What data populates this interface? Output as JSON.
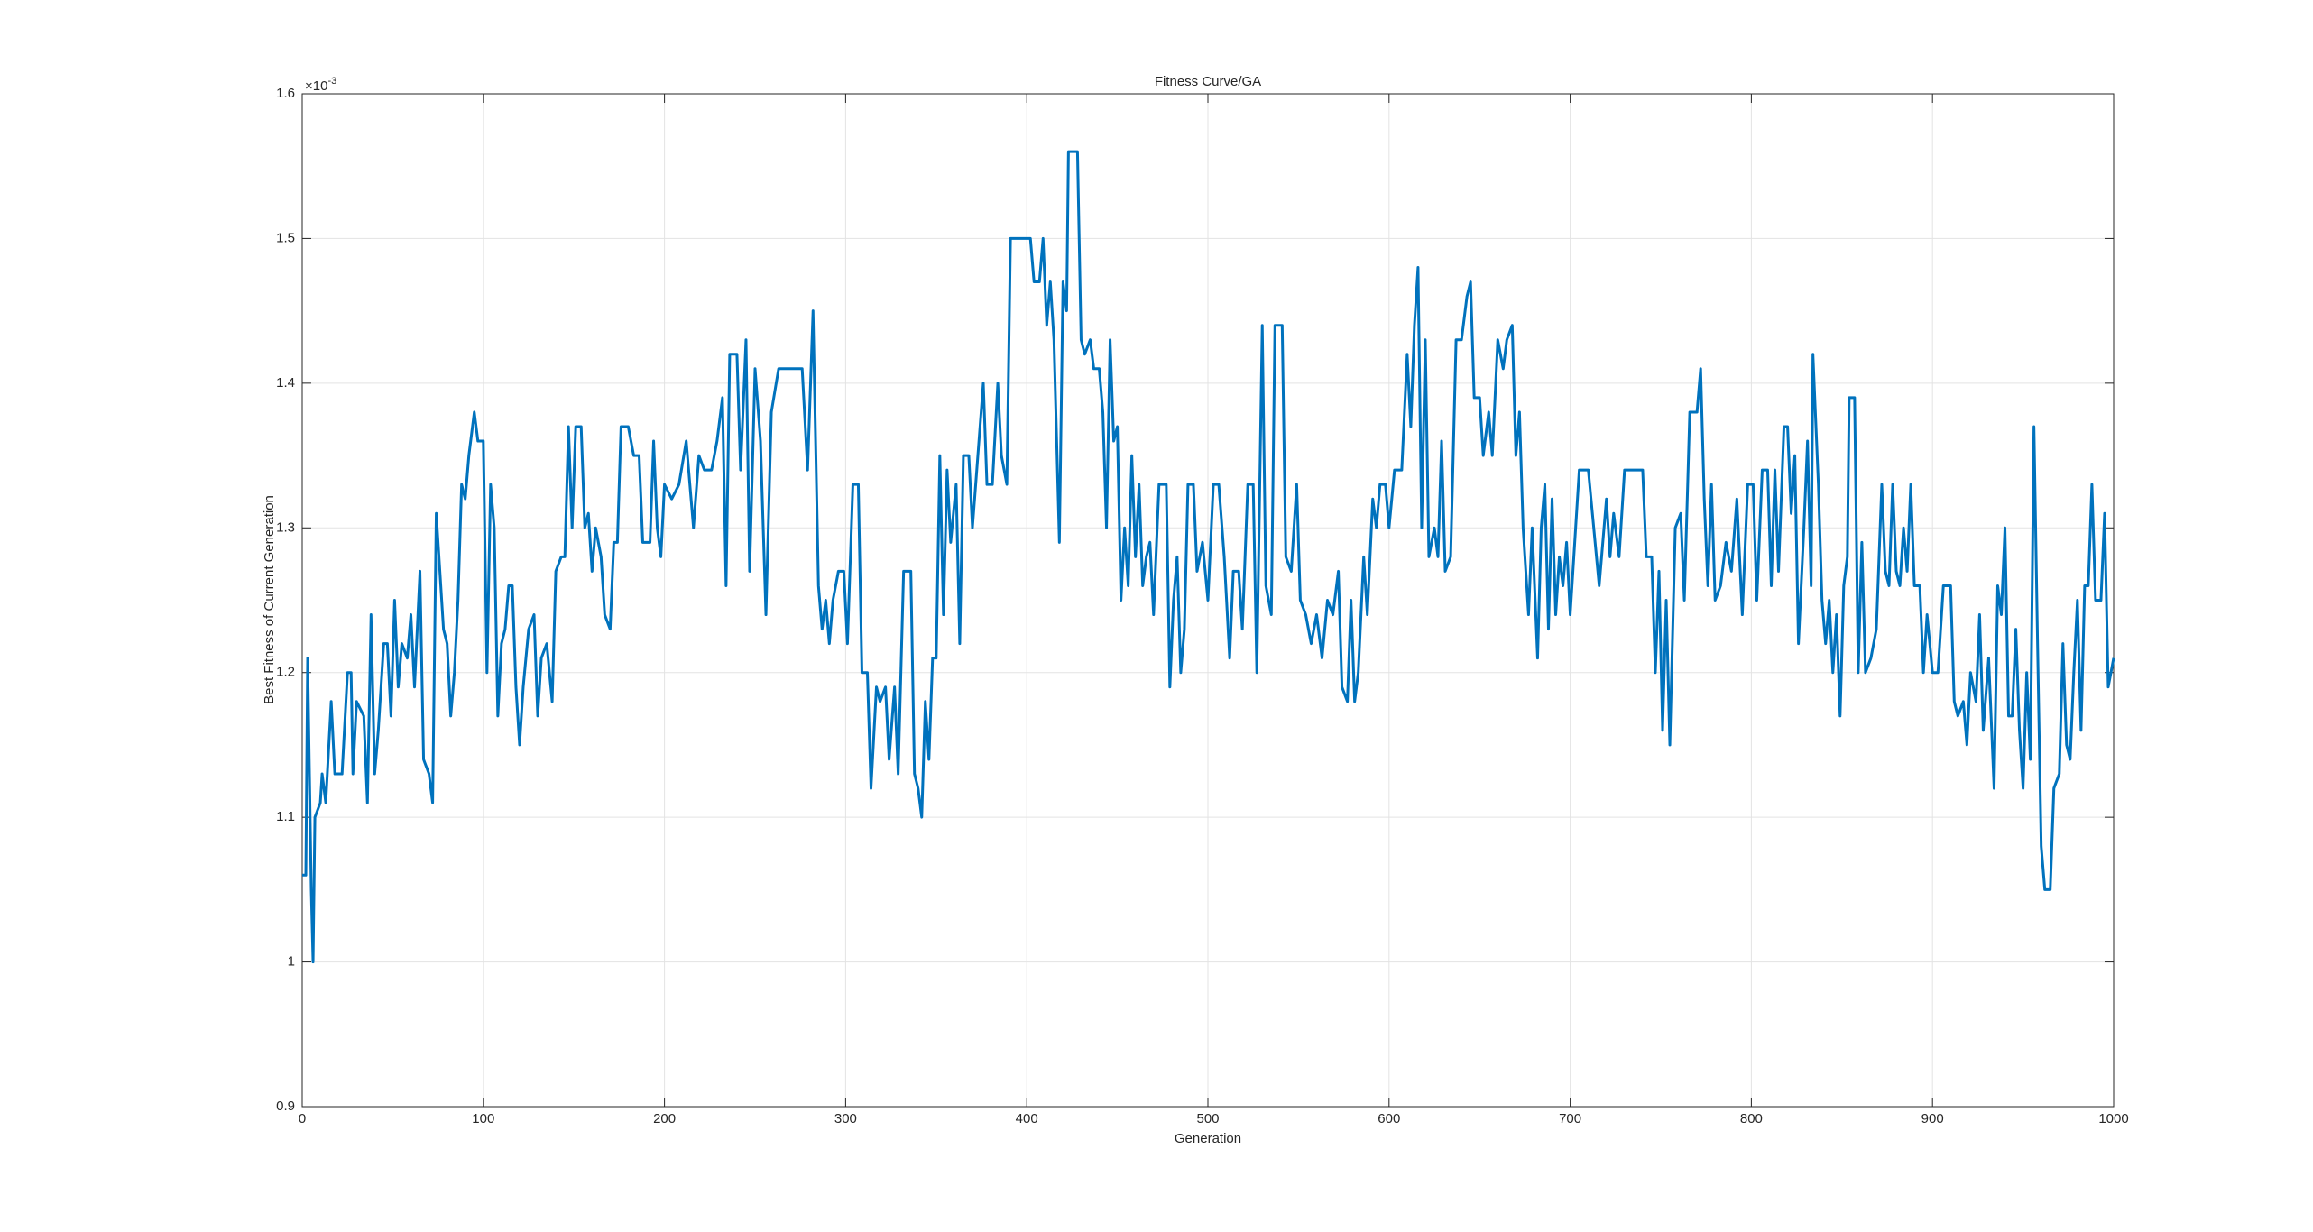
{
  "chart_data": {
    "type": "line",
    "title": "Fitness Curve/GA",
    "xlabel": "Generation",
    "ylabel": "Best Fitness of Current Generation",
    "y_exponent": {
      "base": "×10",
      "power": "-3"
    },
    "color": "#0072bd",
    "grid": true,
    "xlim": [
      0,
      1000
    ],
    "xticks": [
      0,
      100,
      200,
      300,
      400,
      500,
      600,
      700,
      800,
      900,
      1000
    ],
    "ylim": [
      0.9,
      1.6
    ],
    "yticks": [
      0.9,
      1,
      1.1,
      1.2,
      1.3,
      1.4,
      1.5,
      1.6
    ],
    "x": [
      0,
      2,
      3,
      5,
      6,
      7,
      10,
      11,
      13,
      16,
      18,
      22,
      25,
      27,
      28,
      30,
      34,
      36,
      38,
      40,
      42,
      45,
      47,
      49,
      51,
      53,
      55,
      58,
      60,
      62,
      65,
      67,
      70,
      72,
      74,
      76,
      78,
      80,
      82,
      84,
      86,
      88,
      90,
      92,
      95,
      97,
      100,
      102,
      104,
      106,
      108,
      110,
      112,
      114,
      116,
      118,
      120,
      122,
      125,
      128,
      130,
      132,
      135,
      138,
      140,
      143,
      145,
      147,
      149,
      151,
      154,
      156,
      158,
      160,
      162,
      165,
      167,
      170,
      172,
      174,
      176,
      180,
      183,
      186,
      188,
      192,
      194,
      196,
      198,
      200,
      204,
      208,
      212,
      216,
      219,
      222,
      226,
      229,
      232,
      234,
      236,
      240,
      242,
      245,
      247,
      250,
      253,
      256,
      259,
      263,
      270,
      276,
      279,
      282,
      285,
      287,
      289,
      291,
      293,
      296,
      299,
      301,
      304,
      307,
      309,
      312,
      314,
      317,
      319,
      322,
      324,
      327,
      329,
      332,
      336,
      338,
      340,
      342,
      344,
      346,
      348,
      350,
      352,
      354,
      356,
      358,
      361,
      363,
      365,
      368,
      370,
      373,
      376,
      378,
      381,
      384,
      386,
      389,
      391,
      396,
      402,
      404,
      407,
      409,
      411,
      413,
      415,
      418,
      420,
      422,
      423,
      428,
      430,
      432,
      435,
      437,
      440,
      442,
      444,
      446,
      448,
      450,
      452,
      454,
      456,
      458,
      460,
      462,
      464,
      466,
      468,
      470,
      473,
      477,
      479,
      481,
      483,
      485,
      487,
      489,
      492,
      494,
      497,
      500,
      503,
      506,
      509,
      512,
      514,
      517,
      519,
      522,
      525,
      527,
      530,
      532,
      535,
      537,
      541,
      543,
      546,
      549,
      551,
      554,
      557,
      560,
      563,
      566,
      569,
      572,
      574,
      577,
      579,
      581,
      583,
      586,
      588,
      591,
      593,
      595,
      598,
      600,
      603,
      607,
      610,
      612,
      614,
      616,
      618,
      620,
      622,
      625,
      627,
      629,
      631,
      634,
      637,
      640,
      643,
      645,
      647,
      650,
      652,
      655,
      657,
      660,
      663,
      665,
      668,
      670,
      672,
      674,
      677,
      679,
      682,
      684,
      686,
      688,
      690,
      692,
      694,
      696,
      698,
      700,
      705,
      710,
      716,
      720,
      722,
      724,
      727,
      730,
      740,
      742,
      745,
      747,
      749,
      751,
      753,
      755,
      758,
      761,
      763,
      766,
      770,
      772,
      774,
      776,
      778,
      780,
      783,
      786,
      789,
      792,
      795,
      798,
      801,
      803,
      806,
      809,
      811,
      813,
      815,
      818,
      820,
      822,
      824,
      826,
      829,
      831,
      833,
      834,
      837,
      839,
      841,
      843,
      845,
      847,
      849,
      851,
      853,
      854,
      857,
      859,
      861,
      863,
      866,
      869,
      872,
      874,
      876,
      878,
      880,
      882,
      884,
      886,
      888,
      890,
      893,
      895,
      897,
      900,
      903,
      906,
      910,
      912,
      914,
      917,
      919,
      921,
      924,
      926,
      928,
      931,
      934,
      936,
      938,
      940,
      942,
      944,
      946,
      948,
      950,
      952,
      954,
      956,
      958,
      960,
      962,
      965,
      967,
      970,
      972,
      974,
      976,
      978,
      980,
      982,
      984,
      986,
      988,
      990,
      993,
      995,
      997,
      1000
    ],
    "values": [
      1.06,
      1.06,
      1.21,
      1.05,
      1.0,
      1.1,
      1.11,
      1.13,
      1.11,
      1.18,
      1.13,
      1.13,
      1.2,
      1.2,
      1.13,
      1.18,
      1.17,
      1.11,
      1.24,
      1.13,
      1.16,
      1.22,
      1.22,
      1.17,
      1.25,
      1.19,
      1.22,
      1.21,
      1.24,
      1.19,
      1.27,
      1.14,
      1.13,
      1.11,
      1.31,
      1.27,
      1.23,
      1.22,
      1.17,
      1.2,
      1.25,
      1.33,
      1.32,
      1.35,
      1.38,
      1.36,
      1.36,
      1.2,
      1.33,
      1.3,
      1.17,
      1.22,
      1.23,
      1.26,
      1.26,
      1.19,
      1.15,
      1.19,
      1.23,
      1.24,
      1.17,
      1.21,
      1.22,
      1.18,
      1.27,
      1.28,
      1.28,
      1.37,
      1.3,
      1.37,
      1.37,
      1.3,
      1.31,
      1.27,
      1.3,
      1.28,
      1.24,
      1.23,
      1.29,
      1.29,
      1.37,
      1.37,
      1.35,
      1.35,
      1.29,
      1.29,
      1.36,
      1.3,
      1.28,
      1.33,
      1.32,
      1.33,
      1.36,
      1.3,
      1.35,
      1.34,
      1.34,
      1.36,
      1.39,
      1.26,
      1.42,
      1.42,
      1.34,
      1.43,
      1.27,
      1.41,
      1.36,
      1.24,
      1.38,
      1.41,
      1.41,
      1.41,
      1.34,
      1.45,
      1.26,
      1.23,
      1.25,
      1.22,
      1.25,
      1.27,
      1.27,
      1.22,
      1.33,
      1.33,
      1.2,
      1.2,
      1.12,
      1.19,
      1.18,
      1.19,
      1.14,
      1.19,
      1.13,
      1.27,
      1.27,
      1.13,
      1.12,
      1.1,
      1.18,
      1.14,
      1.21,
      1.21,
      1.35,
      1.24,
      1.34,
      1.29,
      1.33,
      1.22,
      1.35,
      1.35,
      1.3,
      1.35,
      1.4,
      1.33,
      1.33,
      1.4,
      1.35,
      1.33,
      1.5,
      1.5,
      1.5,
      1.47,
      1.47,
      1.5,
      1.44,
      1.47,
      1.43,
      1.29,
      1.47,
      1.45,
      1.56,
      1.56,
      1.43,
      1.42,
      1.43,
      1.41,
      1.41,
      1.38,
      1.3,
      1.43,
      1.36,
      1.37,
      1.25,
      1.3,
      1.26,
      1.35,
      1.28,
      1.33,
      1.26,
      1.28,
      1.29,
      1.24,
      1.33,
      1.33,
      1.19,
      1.25,
      1.28,
      1.2,
      1.23,
      1.33,
      1.33,
      1.27,
      1.29,
      1.25,
      1.33,
      1.33,
      1.28,
      1.21,
      1.27,
      1.27,
      1.23,
      1.33,
      1.33,
      1.2,
      1.44,
      1.26,
      1.24,
      1.44,
      1.44,
      1.28,
      1.27,
      1.33,
      1.25,
      1.24,
      1.22,
      1.24,
      1.21,
      1.25,
      1.24,
      1.27,
      1.19,
      1.18,
      1.25,
      1.18,
      1.2,
      1.28,
      1.24,
      1.32,
      1.3,
      1.33,
      1.33,
      1.3,
      1.34,
      1.34,
      1.42,
      1.37,
      1.44,
      1.48,
      1.3,
      1.43,
      1.28,
      1.3,
      1.28,
      1.36,
      1.27,
      1.28,
      1.43,
      1.43,
      1.46,
      1.47,
      1.39,
      1.39,
      1.35,
      1.38,
      1.35,
      1.43,
      1.41,
      1.43,
      1.44,
      1.35,
      1.38,
      1.3,
      1.24,
      1.3,
      1.21,
      1.3,
      1.33,
      1.23,
      1.32,
      1.24,
      1.28,
      1.26,
      1.29,
      1.24,
      1.34,
      1.34,
      1.26,
      1.32,
      1.28,
      1.31,
      1.28,
      1.34,
      1.34,
      1.28,
      1.28,
      1.2,
      1.27,
      1.16,
      1.25,
      1.15,
      1.3,
      1.31,
      1.25,
      1.38,
      1.38,
      1.41,
      1.32,
      1.26,
      1.33,
      1.25,
      1.26,
      1.29,
      1.27,
      1.32,
      1.24,
      1.33,
      1.33,
      1.25,
      1.34,
      1.34,
      1.26,
      1.34,
      1.27,
      1.37,
      1.37,
      1.31,
      1.35,
      1.22,
      1.3,
      1.36,
      1.26,
      1.42,
      1.33,
      1.25,
      1.22,
      1.25,
      1.2,
      1.24,
      1.17,
      1.26,
      1.28,
      1.39,
      1.39,
      1.2,
      1.29,
      1.2,
      1.21,
      1.23,
      1.33,
      1.27,
      1.26,
      1.33,
      1.27,
      1.26,
      1.3,
      1.27,
      1.33,
      1.26,
      1.26,
      1.2,
      1.24,
      1.2,
      1.2,
      1.26,
      1.26,
      1.18,
      1.17,
      1.18,
      1.15,
      1.2,
      1.18,
      1.24,
      1.16,
      1.21,
      1.12,
      1.26,
      1.24,
      1.3,
      1.17,
      1.17,
      1.23,
      1.16,
      1.12,
      1.2,
      1.14,
      1.37,
      1.22,
      1.08,
      1.05,
      1.05,
      1.12,
      1.13,
      1.22,
      1.15,
      1.14,
      1.2,
      1.25,
      1.16,
      1.26,
      1.26,
      1.33,
      1.25,
      1.25,
      1.31,
      1.19,
      1.21
    ]
  }
}
